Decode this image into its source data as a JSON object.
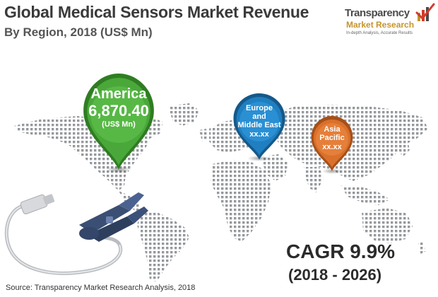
{
  "header": {
    "title": "Global Medical Sensors Market Revenue",
    "subtitle": "By Region, 2018 (US$ Mn)"
  },
  "logo": {
    "line1": "Transparency",
    "line2": "Market Research",
    "tagline": "In-depth Analysis, Accurate Results",
    "icon": "checkmark-bars-icon"
  },
  "pins": [
    {
      "name": "america",
      "label": "America",
      "value": "6,870.40",
      "unit": "(US$ Mn)",
      "color": "#4aa83a"
    },
    {
      "name": "europe-middle-east",
      "label_lines": [
        "Europe",
        "and",
        "Middle East"
      ],
      "value": "xx.xx",
      "color": "#1f7fc1"
    },
    {
      "name": "asia-pacific",
      "label_lines": [
        "Asia",
        "Pacific"
      ],
      "value": "xx.xx",
      "color": "#d9702b"
    }
  ],
  "cagr": {
    "label": "CAGR 9.9%",
    "period": "(2018 - 2026)"
  },
  "source": "Source: Transparency Market Research Analysis, 2018",
  "images": {
    "map": "dotted-world-map",
    "sensor": "pulse-oximeter-sensor"
  }
}
